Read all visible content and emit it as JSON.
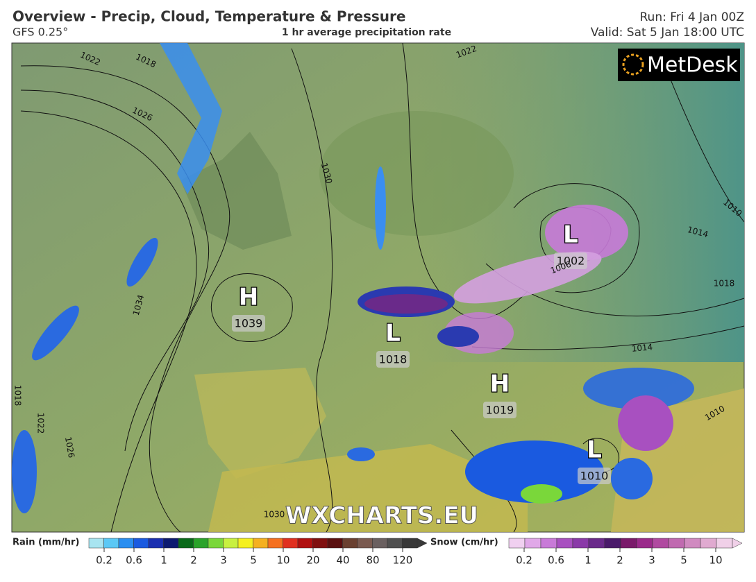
{
  "header": {
    "title": "Overview - Precip, Cloud, Temperature & Pressure",
    "model": "GFS 0.25°",
    "subtitle": "1 hr average precipitation rate",
    "run": "Run: Fri 4 Jan 00Z",
    "valid": "Valid: Sat 5 Jan 18:00 UTC"
  },
  "logo": "MetDesk",
  "watermark": "WXCHARTS.EU",
  "pressure_centers": [
    {
      "letter": "H",
      "value": 1039
    },
    {
      "letter": "L",
      "value": 1018
    },
    {
      "letter": "H",
      "value": 1019
    },
    {
      "letter": "L",
      "value": 1002
    },
    {
      "letter": "L",
      "value": 1010
    }
  ],
  "isobar_labels": [
    1022,
    1018,
    1026,
    1030,
    1034,
    1022,
    1018,
    1022,
    1026,
    1030,
    1010,
    1014,
    1018,
    1014,
    1006,
    1010
  ],
  "legends": [
    {
      "label": "Rain (mm/hr)",
      "ticks": [
        0.2,
        0.6,
        1,
        2,
        3,
        5,
        10,
        20,
        40,
        80,
        120
      ],
      "colors": [
        "#a8e4f0",
        "#5bc8f5",
        "#2a8ef0",
        "#1a5ae0",
        "#1a2fb0",
        "#0c1a70",
        "#0a6a1a",
        "#2aa32a",
        "#7ad73a",
        "#c8f040",
        "#f5f020",
        "#f5b020",
        "#f57020",
        "#e03020",
        "#b01010",
        "#801010",
        "#5a1010",
        "#6a4030",
        "#7a5a50",
        "#6a6060",
        "#505050",
        "#383838"
      ]
    },
    {
      "label": "Snow (cm/hr)",
      "ticks": [
        0.2,
        0.6,
        1,
        2,
        3,
        5,
        10
      ],
      "colors": [
        "#f0d0f0",
        "#e0a8e8",
        "#c87ad8",
        "#a850c0",
        "#8a3aa8",
        "#6a2a8a",
        "#4a1a6a",
        "#7a1a6a",
        "#9a2a8a",
        "#b04aa0",
        "#c06ab0",
        "#d08ac0",
        "#e0aad0",
        "#f0d0e8"
      ]
    }
  ]
}
